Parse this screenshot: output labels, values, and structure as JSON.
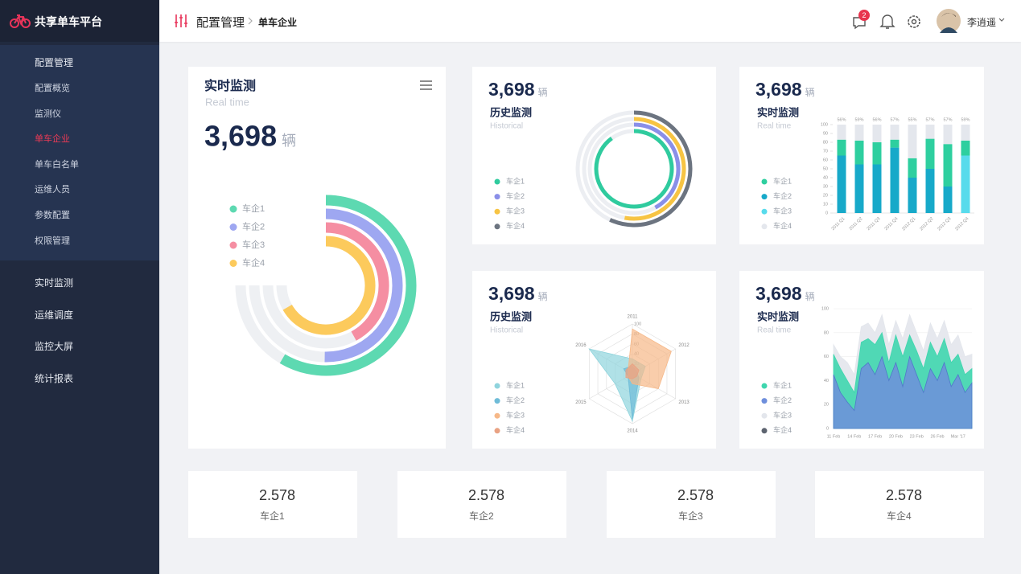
{
  "sidebar": {
    "brand": "共享单车平台",
    "menu": [
      {
        "label": "配置管理",
        "children": [
          "配置概览",
          "监测仪",
          "单车企业",
          "单车白名单",
          "运维人员",
          "参数配置",
          "权限管理"
        ]
      },
      {
        "label": "实时监测"
      },
      {
        "label": "运维调度"
      },
      {
        "label": "监控大屏"
      },
      {
        "label": "统计报表"
      }
    ],
    "active_child": 2
  },
  "header": {
    "breadcrumb": [
      "配置管理",
      "单车企业"
    ],
    "notifications": 2,
    "user": "李逍遥"
  },
  "chart_data": [
    {
      "type": "radial_bar",
      "title": "实时监测",
      "subtitle": "Real time",
      "total": "3,698",
      "unit": "辆",
      "categories": [
        "车企1",
        "车企2",
        "车企3",
        "车企4"
      ],
      "values": [
        78,
        67,
        56,
        89
      ],
      "colors": [
        "#5dd9b1",
        "#9ea7f1",
        "#f58ea2",
        "#fcca5c"
      ],
      "ylim": [
        0,
        100
      ]
    },
    {
      "type": "ring",
      "title": "历史监测",
      "subtitle": "Historical",
      "total": "3,698",
      "unit": "辆",
      "categories": [
        "车企1",
        "车企2",
        "车企3",
        "车企4"
      ],
      "values": [
        90,
        42,
        53,
        57
      ],
      "colors": [
        "#2fcb9e",
        "#8a8fe8",
        "#f7c443",
        "#6c7480"
      ],
      "ylim": [
        0,
        100
      ]
    },
    {
      "type": "stacked_bar",
      "title": "实时监测",
      "subtitle": "Real time",
      "total": "3,698",
      "unit": "辆",
      "categories": [
        "2011 Q1",
        "2011 Q2",
        "2011 Q3",
        "2011 Q4",
        "2012 Q1",
        "2012 Q2",
        "2012 Q3",
        "2012 Q4"
      ],
      "series": [
        {
          "name": "车企1",
          "color": "#2ecf9f",
          "values": [
            18,
            27,
            25,
            9,
            22,
            34,
            48,
            17
          ]
        },
        {
          "name": "车企2",
          "color": "#17a9c9",
          "values": [
            65,
            55,
            55,
            74,
            40,
            50,
            30,
            0
          ]
        },
        {
          "name": "车企3",
          "color": "#58dbec",
          "values": [
            0,
            0,
            0,
            0,
            0,
            0,
            0,
            65
          ]
        },
        {
          "name": "车企4",
          "color": "#e4e7ed",
          "values": [
            17,
            18,
            20,
            17,
            38,
            16,
            22,
            18
          ]
        }
      ],
      "annotations": [
        "56%",
        "59%",
        "56%",
        "57%",
        "55%",
        "57%",
        "57%",
        "59%"
      ],
      "ylim": [
        0,
        100
      ],
      "yticks": [
        0,
        10,
        20,
        30,
        40,
        50,
        60,
        70,
        80,
        90,
        100
      ]
    },
    {
      "type": "radar",
      "title": "历史监测",
      "subtitle": "Historical",
      "total": "3,698",
      "unit": "辆",
      "categories": [
        "2011",
        "2012",
        "2013",
        "2014",
        "2015",
        "2016"
      ],
      "series": [
        {
          "name": "车企1",
          "color": "#8fd4dd",
          "values": [
            30,
            30,
            20,
            95,
            40,
            100
          ]
        },
        {
          "name": "车企2",
          "color": "#6fbcd8",
          "values": [
            15,
            10,
            15,
            90,
            10,
            20
          ]
        },
        {
          "name": "车企3",
          "color": "#f6b888",
          "values": [
            90,
            90,
            60,
            20,
            10,
            10
          ]
        },
        {
          "name": "车企4",
          "color": "#e9a283",
          "values": [
            20,
            15,
            10,
            10,
            15,
            15
          ]
        }
      ],
      "ylim": [
        0,
        100
      ],
      "yticks": [
        20,
        40,
        60,
        80,
        100
      ]
    },
    {
      "type": "area",
      "title": "实时监测",
      "subtitle": "Real time",
      "total": "3,698",
      "unit": "辆",
      "categories": [
        "11 Feb",
        null,
        null,
        "14 Feb",
        null,
        null,
        "17 Feb",
        null,
        null,
        "20 Feb",
        null,
        null,
        "23 Feb",
        null,
        null,
        "26 Feb",
        null,
        null,
        "Mar '17",
        null,
        null
      ],
      "series": [
        {
          "name": "车企1",
          "color": "#3fd6ae",
          "values": [
            62,
            50,
            40,
            30,
            72,
            75,
            70,
            80,
            55,
            78,
            60,
            78,
            65,
            50,
            72,
            60,
            75,
            55,
            62,
            45,
            50
          ]
        },
        {
          "name": "车企2",
          "color": "#6f8fdc",
          "values": [
            45,
            30,
            22,
            15,
            50,
            55,
            45,
            60,
            40,
            55,
            35,
            60,
            45,
            30,
            50,
            40,
            55,
            35,
            45,
            30,
            38
          ]
        },
        {
          "name": "车企3",
          "color": "#e3e6ec",
          "values": [
            70,
            60,
            55,
            45,
            85,
            88,
            80,
            95,
            70,
            90,
            75,
            95,
            80,
            65,
            88,
            75,
            90,
            70,
            78,
            60,
            62
          ]
        },
        {
          "name": "车企4",
          "color": "#5d6470",
          "values": [
            null,
            null,
            null,
            null,
            null,
            null,
            null,
            null,
            null,
            null,
            null,
            null,
            null,
            null,
            null,
            null,
            null,
            null,
            null,
            null,
            null
          ]
        }
      ],
      "ylim": [
        0,
        100
      ],
      "yticks": [
        0,
        20,
        40,
        60,
        80,
        100
      ]
    }
  ],
  "stats": [
    {
      "value": "2.578",
      "label": "车企1",
      "color": "#e8345a"
    },
    {
      "value": "2.578",
      "label": "车企2",
      "color": "#3bb8b8"
    },
    {
      "value": "2.578",
      "label": "车企3",
      "color": "#f2c21b"
    },
    {
      "value": "2.578",
      "label": "车企4",
      "color": "#5d7ed8"
    }
  ]
}
